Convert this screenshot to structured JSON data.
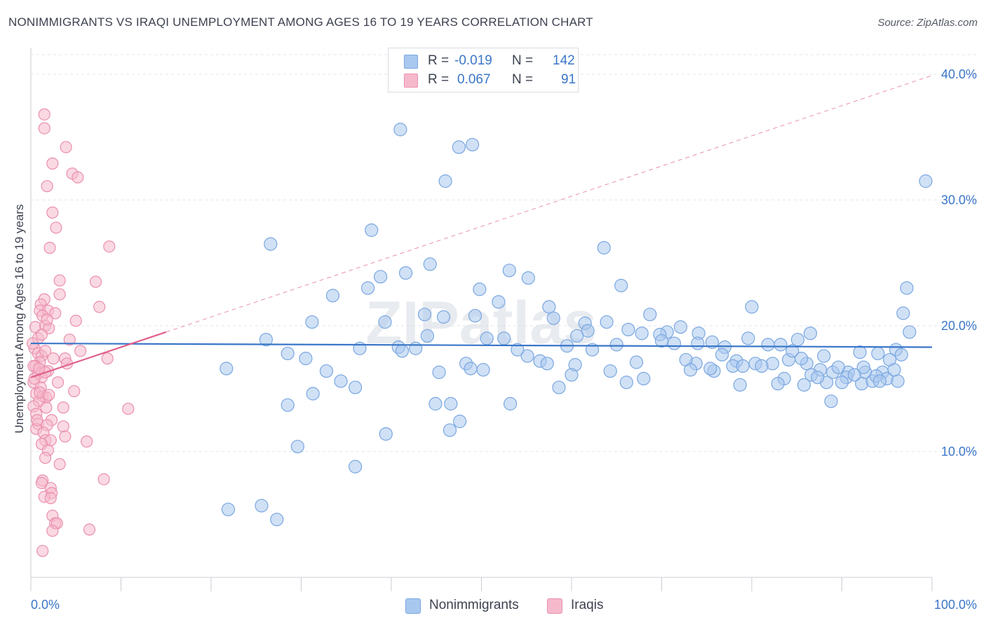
{
  "title": "NONIMMIGRANTS VS IRAQI UNEMPLOYMENT AMONG AGES 16 TO 19 YEARS CORRELATION CHART",
  "source": "Source: ZipAtlas.com",
  "watermark": "ZIPatlas",
  "legend": {
    "rows": [
      {
        "r_label": "R =",
        "r_value": "-0.019",
        "n_label": "N =",
        "n_value": "142"
      },
      {
        "r_label": "R =",
        "r_value": "0.067",
        "n_label": "N =",
        "n_value": "91"
      }
    ]
  },
  "colors": {
    "blue_fill": "#a9c8ef",
    "blue_stroke": "#7aa7e0",
    "blue_line": "#3a76c8",
    "pink_fill": "#f6b9cc",
    "pink_stroke": "#ea8fae",
    "pink_line": "#e0608c",
    "tick_text": "#3a76c8",
    "grid": "#e3e5ea"
  },
  "chart_data": {
    "type": "scatter",
    "title": "NONIMMIGRANTS VS IRAQI UNEMPLOYMENT AMONG AGES 16 TO 19 YEARS CORRELATION CHART",
    "xlabel": "",
    "ylabel": "Unemployment Among Ages 16 to 19 years",
    "xlim": [
      0,
      100
    ],
    "ylim": [
      0,
      42
    ],
    "x_tick_labels": [
      "0.0%",
      "100.0%"
    ],
    "y_ticks": [
      10,
      20,
      30,
      40
    ],
    "y_tick_labels": [
      "10.0%",
      "20.0%",
      "30.0%",
      "40.0%"
    ],
    "grid": true,
    "legend_position": "bottom",
    "series": [
      {
        "name": "Nonimmigrants",
        "color": "#a9c8ef",
        "r": -0.019,
        "n": 142,
        "trend": {
          "x": [
            0,
            100
          ],
          "y": [
            18.6,
            18.3
          ]
        },
        "points": [
          [
            41,
            35.6
          ],
          [
            49,
            34.4
          ],
          [
            47.5,
            34.2
          ],
          [
            46,
            31.5
          ],
          [
            99.3,
            31.5
          ],
          [
            26.6,
            26.5
          ],
          [
            63.6,
            26.2
          ],
          [
            37.8,
            27.6
          ],
          [
            44.3,
            24.9
          ],
          [
            53.1,
            24.4
          ],
          [
            38.8,
            23.9
          ],
          [
            41.6,
            24.2
          ],
          [
            55.2,
            23.8
          ],
          [
            33.5,
            22.4
          ],
          [
            37.4,
            23.0
          ],
          [
            49.8,
            22.9
          ],
          [
            65.5,
            23.2
          ],
          [
            97.2,
            23.0
          ],
          [
            57.5,
            21.5
          ],
          [
            51.9,
            21.9
          ],
          [
            43.7,
            20.9
          ],
          [
            45.8,
            20.7
          ],
          [
            49.3,
            20.8
          ],
          [
            80.0,
            21.5
          ],
          [
            31.2,
            20.3
          ],
          [
            39.3,
            20.3
          ],
          [
            58.0,
            20.6
          ],
          [
            61.5,
            20.2
          ],
          [
            68.7,
            20.9
          ],
          [
            72.1,
            19.9
          ],
          [
            96.8,
            21.0
          ],
          [
            63.9,
            20.3
          ],
          [
            61.8,
            19.6
          ],
          [
            66.3,
            19.7
          ],
          [
            70.6,
            19.5
          ],
          [
            74.1,
            19.4
          ],
          [
            75.6,
            18.7
          ],
          [
            77.0,
            18.3
          ],
          [
            79.6,
            19.0
          ],
          [
            81.8,
            18.5
          ],
          [
            85.1,
            18.9
          ],
          [
            88.0,
            17.6
          ],
          [
            92.0,
            17.9
          ],
          [
            94.0,
            17.8
          ],
          [
            96.0,
            18.1
          ],
          [
            26.1,
            18.9
          ],
          [
            28.5,
            17.8
          ],
          [
            30.5,
            17.4
          ],
          [
            36.5,
            18.2
          ],
          [
            40.8,
            18.3
          ],
          [
            42.7,
            18.2
          ],
          [
            48.3,
            17.0
          ],
          [
            50.6,
            19.0
          ],
          [
            52.5,
            19.0
          ],
          [
            55.1,
            17.6
          ],
          [
            56.5,
            17.2
          ],
          [
            59.5,
            18.4
          ],
          [
            60.6,
            19.2
          ],
          [
            62.3,
            18.1
          ],
          [
            65.0,
            18.5
          ],
          [
            67.8,
            19.4
          ],
          [
            69.8,
            19.3
          ],
          [
            71.4,
            18.6
          ],
          [
            73.8,
            17.0
          ],
          [
            74.0,
            18.6
          ],
          [
            76.7,
            17.7
          ],
          [
            78.3,
            17.2
          ],
          [
            80.4,
            17.0
          ],
          [
            82.3,
            17.0
          ],
          [
            84.1,
            17.3
          ],
          [
            86.1,
            17.0
          ],
          [
            87.6,
            16.5
          ],
          [
            89.0,
            16.3
          ],
          [
            90.7,
            16.3
          ],
          [
            92.6,
            16.3
          ],
          [
            94.5,
            16.3
          ],
          [
            95.3,
            17.3
          ],
          [
            97.5,
            19.5
          ],
          [
            21.7,
            16.6
          ],
          [
            32.8,
            16.4
          ],
          [
            34.4,
            15.6
          ],
          [
            36.0,
            15.1
          ],
          [
            45.3,
            16.3
          ],
          [
            50.2,
            16.5
          ],
          [
            57.3,
            17.0
          ],
          [
            58.6,
            15.1
          ],
          [
            60.4,
            16.9
          ],
          [
            64.3,
            16.4
          ],
          [
            66.1,
            15.5
          ],
          [
            68.0,
            15.8
          ],
          [
            72.7,
            17.3
          ],
          [
            75.8,
            16.4
          ],
          [
            78.7,
            15.3
          ],
          [
            81.1,
            16.8
          ],
          [
            83.6,
            15.8
          ],
          [
            85.8,
            15.3
          ],
          [
            88.3,
            15.5
          ],
          [
            90.5,
            15.9
          ],
          [
            92.2,
            15.4
          ],
          [
            93.4,
            15.6
          ],
          [
            95.0,
            15.8
          ],
          [
            96.2,
            15.6
          ],
          [
            31.3,
            14.6
          ],
          [
            28.5,
            13.7
          ],
          [
            44.9,
            13.8
          ],
          [
            46.6,
            13.8
          ],
          [
            53.2,
            13.8
          ],
          [
            88.8,
            14.0
          ],
          [
            47.6,
            12.4
          ],
          [
            46.5,
            11.7
          ],
          [
            39.4,
            11.4
          ],
          [
            29.6,
            10.4
          ],
          [
            36.0,
            8.8
          ],
          [
            21.9,
            5.4
          ],
          [
            25.6,
            5.7
          ],
          [
            27.3,
            4.6
          ],
          [
            41.2,
            18.0
          ],
          [
            44.0,
            19.2
          ],
          [
            54.0,
            18.1
          ],
          [
            70.0,
            18.8
          ],
          [
            75.4,
            16.6
          ],
          [
            77.9,
            16.8
          ],
          [
            83.2,
            18.5
          ],
          [
            86.6,
            16.1
          ],
          [
            89.6,
            16.7
          ],
          [
            91.4,
            16.1
          ],
          [
            93.8,
            16.0
          ],
          [
            96.6,
            17.7
          ],
          [
            48.8,
            16.6
          ],
          [
            60.0,
            16.1
          ],
          [
            67.2,
            17.1
          ],
          [
            73.2,
            16.5
          ],
          [
            79.0,
            16.8
          ],
          [
            82.9,
            15.4
          ],
          [
            85.5,
            17.4
          ],
          [
            87.3,
            15.9
          ],
          [
            90.0,
            15.5
          ],
          [
            92.4,
            16.7
          ],
          [
            94.2,
            15.6
          ],
          [
            95.8,
            16.5
          ],
          [
            86.5,
            19.4
          ],
          [
            84.5,
            18.0
          ]
        ]
      },
      {
        "name": "Iraqis",
        "color": "#f6b9cc",
        "r": 0.067,
        "n": 91,
        "trend": {
          "x": [
            0,
            15
          ],
          "y": [
            15.9,
            19.5
          ]
        },
        "points": [
          [
            1.5,
            36.8
          ],
          [
            1.5,
            35.7
          ],
          [
            3.9,
            34.2
          ],
          [
            2.4,
            32.9
          ],
          [
            4.6,
            32.1
          ],
          [
            5.2,
            31.8
          ],
          [
            1.8,
            31.1
          ],
          [
            2.4,
            29.0
          ],
          [
            2.8,
            27.8
          ],
          [
            2.1,
            26.2
          ],
          [
            8.7,
            26.3
          ],
          [
            3.2,
            23.6
          ],
          [
            7.2,
            23.5
          ],
          [
            3.2,
            22.5
          ],
          [
            1.5,
            22.1
          ],
          [
            1.1,
            21.7
          ],
          [
            1.0,
            21.2
          ],
          [
            1.9,
            21.2
          ],
          [
            7.6,
            21.5
          ],
          [
            1.3,
            20.8
          ],
          [
            0.5,
            19.9
          ],
          [
            1.6,
            20.0
          ],
          [
            2.0,
            19.8
          ],
          [
            5.0,
            20.4
          ],
          [
            0.8,
            19.0
          ],
          [
            4.3,
            18.9
          ],
          [
            0.4,
            18.2
          ],
          [
            0.8,
            17.8
          ],
          [
            1.2,
            17.6
          ],
          [
            1.6,
            18.0
          ],
          [
            3.8,
            17.4
          ],
          [
            1.0,
            17.1
          ],
          [
            0.5,
            16.8
          ],
          [
            1.9,
            16.4
          ],
          [
            8.5,
            17.4
          ],
          [
            0.8,
            16.2
          ],
          [
            1.2,
            15.9
          ],
          [
            0.3,
            15.5
          ],
          [
            1.1,
            15.1
          ],
          [
            4.8,
            14.8
          ],
          [
            0.6,
            14.6
          ],
          [
            1.3,
            14.4
          ],
          [
            1.7,
            14.3
          ],
          [
            0.9,
            14.0
          ],
          [
            0.3,
            13.6
          ],
          [
            1.7,
            13.5
          ],
          [
            3.6,
            13.5
          ],
          [
            10.8,
            13.4
          ],
          [
            0.6,
            13.0
          ],
          [
            2.3,
            12.5
          ],
          [
            0.8,
            12.2
          ],
          [
            1.8,
            12.1
          ],
          [
            3.6,
            12.0
          ],
          [
            0.6,
            11.8
          ],
          [
            1.4,
            11.5
          ],
          [
            3.8,
            11.2
          ],
          [
            1.6,
            10.9
          ],
          [
            2.2,
            10.9
          ],
          [
            6.2,
            10.8
          ],
          [
            1.2,
            10.6
          ],
          [
            1.9,
            10.1
          ],
          [
            1.6,
            9.5
          ],
          [
            3.2,
            9.0
          ],
          [
            1.3,
            7.7
          ],
          [
            8.1,
            7.8
          ],
          [
            1.2,
            7.5
          ],
          [
            2.2,
            7.1
          ],
          [
            2.3,
            6.7
          ],
          [
            1.5,
            6.4
          ],
          [
            2.2,
            6.3
          ],
          [
            2.4,
            4.9
          ],
          [
            2.7,
            4.3
          ],
          [
            2.9,
            4.3
          ],
          [
            6.5,
            3.8
          ],
          [
            2.4,
            3.7
          ],
          [
            1.3,
            2.1
          ],
          [
            0.2,
            18.6
          ],
          [
            1.6,
            16.3
          ],
          [
            0.3,
            16.8
          ],
          [
            1.0,
            14.7
          ],
          [
            2.7,
            21.0
          ],
          [
            5.5,
            18.0
          ],
          [
            0.7,
            12.5
          ],
          [
            2.5,
            17.4
          ],
          [
            1.8,
            20.5
          ],
          [
            0.4,
            15.8
          ],
          [
            4.0,
            17.0
          ],
          [
            3.0,
            15.5
          ],
          [
            1.2,
            19.3
          ],
          [
            0.9,
            16.6
          ],
          [
            2.0,
            14.5
          ]
        ]
      }
    ]
  }
}
